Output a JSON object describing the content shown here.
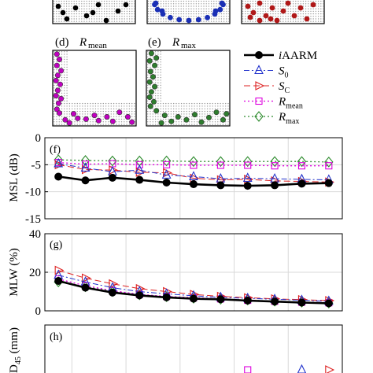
{
  "chart_data": [
    {
      "type": "scatter",
      "panel": "d",
      "title": "R_mean",
      "title_main": "R",
      "title_sub": "mean",
      "label": "(d)",
      "marker_color": "#c000c0",
      "description_points": [
        [
          0.05,
          0.95
        ],
        [
          0.08,
          0.88
        ],
        [
          0.05,
          0.8
        ],
        [
          0.1,
          0.73
        ],
        [
          0.06,
          0.67
        ],
        [
          0.04,
          0.6
        ],
        [
          0.09,
          0.55
        ],
        [
          0.06,
          0.47
        ],
        [
          0.04,
          0.4
        ],
        [
          0.1,
          0.36
        ],
        [
          0.07,
          0.3
        ],
        [
          0.05,
          0.22
        ],
        [
          0.08,
          0.17
        ],
        [
          0.25,
          0.16
        ],
        [
          0.3,
          0.1
        ],
        [
          0.4,
          0.09
        ],
        [
          0.5,
          0.14
        ],
        [
          0.55,
          0.07
        ],
        [
          0.65,
          0.12
        ],
        [
          0.72,
          0.06
        ],
        [
          0.8,
          0.18
        ],
        [
          0.9,
          0.12
        ],
        [
          0.95,
          0.05
        ],
        [
          0.15,
          0.08
        ],
        [
          0.2,
          0.04
        ]
      ]
    },
    {
      "type": "scatter",
      "panel": "e",
      "title": "R_max",
      "title_main": "R",
      "title_sub": "max",
      "label": "(e)",
      "marker_color": "#2e7d2e",
      "description_points": [
        [
          0.06,
          0.96
        ],
        [
          0.12,
          0.9
        ],
        [
          0.04,
          0.86
        ],
        [
          0.1,
          0.8
        ],
        [
          0.05,
          0.72
        ],
        [
          0.08,
          0.65
        ],
        [
          0.04,
          0.58
        ],
        [
          0.1,
          0.52
        ],
        [
          0.06,
          0.45
        ],
        [
          0.04,
          0.38
        ],
        [
          0.09,
          0.32
        ],
        [
          0.05,
          0.26
        ],
        [
          0.12,
          0.2
        ],
        [
          0.22,
          0.14
        ],
        [
          0.3,
          0.06
        ],
        [
          0.38,
          0.12
        ],
        [
          0.48,
          0.08
        ],
        [
          0.58,
          0.15
        ],
        [
          0.66,
          0.05
        ],
        [
          0.75,
          0.11
        ],
        [
          0.84,
          0.18
        ],
        [
          0.92,
          0.08
        ],
        [
          0.18,
          0.04
        ],
        [
          0.96,
          0.16
        ]
      ]
    },
    {
      "type": "line",
      "panel": "f",
      "label": "(f)",
      "ylabel": "MSL (dB)",
      "ylim": [
        -15,
        0
      ],
      "yticks": [
        "0",
        "-5",
        "-10",
        "-15"
      ],
      "x": [
        1,
        2,
        3,
        4,
        5,
        6,
        7,
        8,
        9,
        10,
        11
      ],
      "xlim": [
        0.5,
        11.5
      ],
      "series": [
        {
          "name": "iAARM",
          "values": [
            -7.2,
            -7.9,
            -7.4,
            -7.8,
            -8.3,
            -8.6,
            -8.8,
            -8.9,
            -8.8,
            -8.5,
            -8.4
          ]
        },
        {
          "name": "S0",
          "values": [
            -4.8,
            -5.6,
            -6.3,
            -6.0,
            -6.9,
            -7.2,
            -7.6,
            -7.5,
            -7.6,
            -7.7,
            -7.8
          ]
        },
        {
          "name": "SC",
          "values": [
            -5.0,
            -5.9,
            -6.0,
            -6.4,
            -6.5,
            -7.5,
            -7.8,
            -7.7,
            -8.0,
            -8.1,
            -8.2
          ]
        },
        {
          "name": "Rmean",
          "values": [
            -4.6,
            -4.9,
            -4.8,
            -5.0,
            -5.0,
            -5.1,
            -5.1,
            -5.1,
            -5.2,
            -5.2,
            -5.2
          ]
        },
        {
          "name": "Rmax",
          "values": [
            -4.1,
            -4.2,
            -4.3,
            -4.3,
            -4.3,
            -4.4,
            -4.4,
            -4.4,
            -4.4,
            -4.4,
            -4.5
          ]
        }
      ]
    },
    {
      "type": "line",
      "panel": "g",
      "label": "(g)",
      "ylabel": "MLW (%)",
      "ylim": [
        0,
        40
      ],
      "yticks": [
        "40",
        "20",
        "0"
      ],
      "x": [
        1,
        2,
        3,
        4,
        5,
        6,
        7,
        8,
        9,
        10,
        11
      ],
      "xlim": [
        0.5,
        11.5
      ],
      "series": [
        {
          "name": "iAARM",
          "values": [
            15.5,
            12.0,
            9.5,
            8.0,
            7.0,
            6.3,
            6.0,
            5.3,
            4.8,
            4.3,
            3.9
          ]
        },
        {
          "name": "S0",
          "values": [
            18.5,
            15.0,
            12.0,
            10.0,
            8.8,
            7.8,
            7.0,
            6.5,
            6.0,
            5.5,
            5.0
          ]
        },
        {
          "name": "SC",
          "values": [
            21.0,
            17.0,
            14.0,
            11.5,
            10.0,
            8.5,
            7.5,
            6.8,
            6.2,
            5.8,
            5.3
          ]
        },
        {
          "name": "Rmean",
          "values": [
            16.5,
            13.0,
            10.5,
            8.5,
            7.5,
            6.8,
            6.2,
            5.5,
            5.0,
            4.5,
            4.2
          ]
        },
        {
          "name": "Rmax",
          "values": [
            15.0,
            12.5,
            10.0,
            8.3,
            7.3,
            6.5,
            6.0,
            5.6,
            5.0,
            4.5,
            4.0
          ]
        }
      ]
    },
    {
      "type": "line",
      "panel": "h",
      "label": "(h)",
      "ylabel": "D45 (mm)",
      "ylabel_main": "D",
      "ylabel_sub": "45",
      "ylabel_unit": " (mm)",
      "x": [
        1,
        2,
        3,
        4,
        5,
        6,
        7,
        8,
        9,
        10,
        11
      ],
      "xlim": [
        0.5,
        11.5
      ],
      "visible_markers": [
        {
          "series": "Rmean",
          "x": 8,
          "y": 0.08
        },
        {
          "series": "S0",
          "x": 10,
          "y": 0.08
        },
        {
          "series": "SC",
          "x": 11,
          "y": 0.08
        }
      ]
    }
  ],
  "legend": {
    "entries": [
      {
        "name": "iAARM",
        "main": "i",
        "rest": "AARM",
        "sub": "",
        "color": "#000000"
      },
      {
        "name": "S0",
        "main": "S",
        "rest": "",
        "sub": "0",
        "color": "#2233cc"
      },
      {
        "name": "SC",
        "main": "S",
        "rest": "",
        "sub": "C",
        "color": "#dd2222"
      },
      {
        "name": "Rmean",
        "main": "R",
        "rest": "",
        "sub": "mean",
        "color": "#dd00dd"
      },
      {
        "name": "Rmax",
        "main": "R",
        "rest": "",
        "sub": "max",
        "color": "#2e8b2e"
      }
    ]
  },
  "colors": {
    "black": "#000000",
    "blue": "#2233cc",
    "red": "#dd2222",
    "magenta": "#dd00dd",
    "green": "#2e8b2e",
    "grid": "#d9d9d9",
    "dots": "#9a9a9a"
  }
}
